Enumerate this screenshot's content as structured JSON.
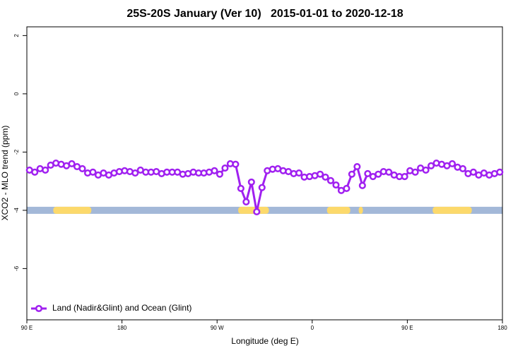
{
  "chart_data": {
    "type": "line",
    "title": "25S-20S January (Ver 10)   2015-01-01 to 2020-12-18",
    "x_label": "Longitude (deg E)",
    "y_label": "XCO2 - MLO trend (ppm)",
    "x": [
      92.5,
      97.5,
      102.5,
      107.5,
      112.5,
      117.5,
      122.5,
      127.5,
      132.5,
      137.5,
      142.5,
      147.5,
      152.5,
      157.5,
      162.5,
      167.5,
      172.5,
      177.5,
      182.5,
      187.5,
      192.5,
      197.5,
      202.5,
      207.5,
      212.5,
      217.5,
      222.5,
      227.5,
      232.5,
      237.5,
      242.5,
      247.5,
      252.5,
      257.5,
      262.5,
      267.5,
      272.5,
      277.5,
      282.5,
      287.5,
      292.5,
      297.5,
      302.5,
      307.5,
      312.5,
      317.5,
      322.5,
      327.5,
      332.5,
      337.5,
      342.5,
      347.5,
      352.5,
      357.5,
      362.5,
      367.5,
      372.5,
      377.5,
      382.5,
      387.5,
      392.5,
      397.5,
      402.5,
      407.5,
      412.5,
      417.5,
      422.5,
      427.5,
      432.5,
      437.5,
      442.5,
      447.5,
      452.5,
      457.5,
      462.5,
      467.5,
      472.5,
      477.5,
      482.5,
      487.5,
      492.5,
      497.5,
      502.5,
      507.5,
      512.5,
      517.5,
      522.5,
      527.5,
      532.5,
      537.5
    ],
    "series": [
      {
        "name": "Land (Nadir&Glint) and Ocean (Glint)",
        "color": "#a020f0",
        "values": [
          -2.62,
          -2.69,
          -2.57,
          -2.62,
          -2.45,
          -2.38,
          -2.42,
          -2.47,
          -2.4,
          -2.5,
          -2.57,
          -2.72,
          -2.69,
          -2.79,
          -2.72,
          -2.79,
          -2.72,
          -2.67,
          -2.64,
          -2.67,
          -2.72,
          -2.62,
          -2.69,
          -2.69,
          -2.67,
          -2.74,
          -2.69,
          -2.69,
          -2.69,
          -2.76,
          -2.74,
          -2.69,
          -2.72,
          -2.72,
          -2.69,
          -2.64,
          -2.76,
          -2.55,
          -2.4,
          -2.42,
          -3.25,
          -3.71,
          -3.03,
          -4.05,
          -3.22,
          -2.64,
          -2.59,
          -2.57,
          -2.64,
          -2.67,
          -2.74,
          -2.72,
          -2.86,
          -2.84,
          -2.81,
          -2.76,
          -2.86,
          -2.98,
          -3.13,
          -3.32,
          -3.25,
          -2.76,
          -2.5,
          -3.15,
          -2.74,
          -2.84,
          -2.76,
          -2.67,
          -2.69,
          -2.79,
          -2.84,
          -2.84,
          -2.64,
          -2.69,
          -2.55,
          -2.62,
          -2.47,
          -2.38,
          -2.42,
          -2.47,
          -2.4,
          -2.52,
          -2.57,
          -2.74,
          -2.69,
          -2.79,
          -2.72,
          -2.79,
          -2.74,
          -2.69
        ]
      }
    ],
    "xlim": [
      90,
      540
    ],
    "xticks": [
      {
        "value": 90,
        "label": "90 E"
      },
      {
        "value": 180,
        "label": "180"
      },
      {
        "value": 270,
        "label": "90 W"
      },
      {
        "value": 360,
        "label": "0"
      },
      {
        "value": 450,
        "label": "90 E"
      },
      {
        "value": 540,
        "label": "180"
      }
    ],
    "ylim": [
      -7.76,
      2.3
    ],
    "yticks": [
      -6,
      -4,
      -2,
      0,
      2
    ],
    "legend": "bottom-left",
    "surface_band": {
      "y": -4,
      "ocean_color": "#a3b8d8",
      "land_color": "#fcd96b",
      "land_ranges": [
        [
          115,
          151
        ],
        [
          290,
          319
        ],
        [
          374,
          396
        ],
        [
          404,
          408
        ],
        [
          474,
          511
        ]
      ]
    }
  }
}
